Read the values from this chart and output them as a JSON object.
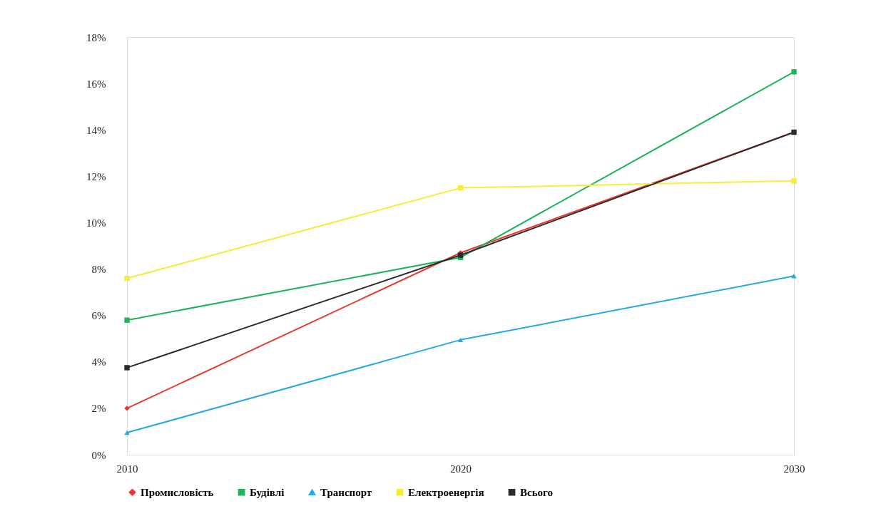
{
  "chart_data": {
    "type": "line",
    "categories": [
      "2010",
      "2020",
      "2030"
    ],
    "series": [
      {
        "name": "Промисловість",
        "color": "#e8382f",
        "marker": "diamond",
        "values": [
          2.0,
          8.7,
          13.9
        ]
      },
      {
        "name": "Будівлі",
        "color": "#21b35a",
        "marker": "square",
        "values": [
          5.8,
          8.5,
          16.5
        ]
      },
      {
        "name": "Транспорт",
        "color": "#27a9e1",
        "marker": "triangle",
        "values": [
          0.95,
          4.95,
          7.7
        ]
      },
      {
        "name": "Електроенергія",
        "color": "#f7ec3a",
        "marker": "square",
        "values": [
          7.6,
          11.5,
          11.8
        ]
      },
      {
        "name": "Всього",
        "color": "#2b2b2b",
        "marker": "square",
        "values": [
          3.75,
          8.6,
          13.9
        ]
      }
    ],
    "ylim": [
      0,
      18
    ],
    "yticks": [
      {
        "value": 0,
        "label": "0%"
      },
      {
        "value": 2,
        "label": "2%"
      },
      {
        "value": 4,
        "label": "4%"
      },
      {
        "value": 6,
        "label": "6%"
      },
      {
        "value": 8,
        "label": "8%"
      },
      {
        "value": 10,
        "label": "10%"
      },
      {
        "value": 12,
        "label": "12%"
      },
      {
        "value": 14,
        "label": "14%"
      },
      {
        "value": 16,
        "label": "16%"
      },
      {
        "value": 18,
        "label": "18%"
      }
    ],
    "grid": false,
    "legend": "bottom",
    "line_style": "solid"
  }
}
